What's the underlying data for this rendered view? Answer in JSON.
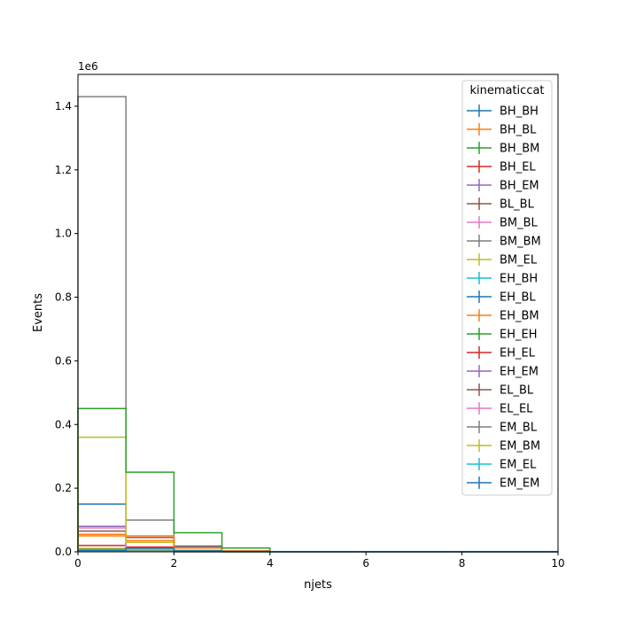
{
  "chart_data": {
    "type": "step-histogram",
    "title": "",
    "xlabel": "njets",
    "ylabel": "Events",
    "y_offset_label": "1e6",
    "x_bin_edges": [
      0,
      1,
      2,
      3,
      4,
      5,
      6,
      7,
      8,
      9,
      10
    ],
    "xlim": [
      0,
      10
    ],
    "ylim": [
      0,
      1500000
    ],
    "x_ticks": [
      0,
      2,
      4,
      6,
      8,
      10
    ],
    "x_tick_labels": [
      "0",
      "2",
      "4",
      "6",
      "8",
      "10"
    ],
    "y_ticks": [
      0,
      200000,
      400000,
      600000,
      800000,
      1000000,
      1200000,
      1400000
    ],
    "y_tick_labels": [
      "0.0",
      "0.2",
      "0.4",
      "0.6",
      "0.8",
      "1.0",
      "1.2",
      "1.4"
    ],
    "grid": false,
    "legend": {
      "title": "kinematiccat",
      "placement": "top-right"
    },
    "series": [
      {
        "name": "BH_BH",
        "color": "#1f77b4",
        "values": [
          150000,
          8000,
          1000,
          200,
          0,
          0,
          0,
          0,
          0,
          0
        ]
      },
      {
        "name": "BH_BL",
        "color": "#ff7f0e",
        "values": [
          55000,
          35000,
          12000,
          2000,
          0,
          0,
          0,
          0,
          0,
          0
        ]
      },
      {
        "name": "BH_BM",
        "color": "#2ca02c",
        "values": [
          10000,
          5000,
          1500,
          300,
          0,
          0,
          0,
          0,
          0,
          0
        ]
      },
      {
        "name": "BH_EL",
        "color": "#d62728",
        "values": [
          20000,
          15000,
          5000,
          1000,
          0,
          0,
          0,
          0,
          0,
          0
        ]
      },
      {
        "name": "BH_EM",
        "color": "#9467bd",
        "values": [
          80000,
          10000,
          2000,
          300,
          0,
          0,
          0,
          0,
          0,
          0
        ]
      },
      {
        "name": "BL_BL",
        "color": "#8c564b",
        "values": [
          65000,
          45000,
          18000,
          3000,
          0,
          0,
          0,
          0,
          0,
          0
        ]
      },
      {
        "name": "BM_BL",
        "color": "#e377c2",
        "values": [
          75000,
          12000,
          3000,
          500,
          0,
          0,
          0,
          0,
          0,
          0
        ]
      },
      {
        "name": "BM_BM",
        "color": "#7f7f7f",
        "values": [
          1430000,
          100000,
          15000,
          2000,
          0,
          0,
          0,
          0,
          0,
          0
        ]
      },
      {
        "name": "BM_EL",
        "color": "#bcbd22",
        "values": [
          360000,
          30000,
          5000,
          1000,
          0,
          0,
          0,
          0,
          0,
          0
        ]
      },
      {
        "name": "EH_BH",
        "color": "#17becf",
        "values": [
          5000,
          3000,
          800,
          100,
          0,
          0,
          0,
          0,
          0,
          0
        ]
      },
      {
        "name": "EH_BL",
        "color": "#1f77b4",
        "values": [
          7000,
          6000,
          2000,
          300,
          0,
          0,
          0,
          0,
          0,
          0
        ]
      },
      {
        "name": "EH_BM",
        "color": "#ff7f0e",
        "values": [
          50000,
          50000,
          12000,
          2000,
          0,
          0,
          0,
          0,
          0,
          0
        ]
      },
      {
        "name": "EH_EH",
        "color": "#2ca02c",
        "values": [
          450000,
          250000,
          60000,
          12000,
          0,
          0,
          0,
          0,
          0,
          0
        ]
      },
      {
        "name": "EH_EL",
        "color": "#d62728",
        "values": [
          3000,
          2000,
          500,
          100,
          0,
          0,
          0,
          0,
          0,
          0
        ]
      },
      {
        "name": "EH_EM",
        "color": "#9467bd",
        "values": [
          2000,
          1500,
          400,
          100,
          0,
          0,
          0,
          0,
          0,
          0
        ]
      },
      {
        "name": "EL_BL",
        "color": "#8c564b",
        "values": [
          4000,
          3000,
          800,
          100,
          0,
          0,
          0,
          0,
          0,
          0
        ]
      },
      {
        "name": "EL_EL",
        "color": "#e377c2",
        "values": [
          3000,
          2500,
          600,
          100,
          0,
          0,
          0,
          0,
          0,
          0
        ]
      },
      {
        "name": "EM_BL",
        "color": "#7f7f7f",
        "values": [
          6000,
          5000,
          1500,
          300,
          0,
          0,
          0,
          0,
          0,
          0
        ]
      },
      {
        "name": "EM_BM",
        "color": "#bcbd22",
        "values": [
          8000,
          7000,
          2000,
          300,
          0,
          0,
          0,
          0,
          0,
          0
        ]
      },
      {
        "name": "EM_EL",
        "color": "#17becf",
        "values": [
          2000,
          1500,
          400,
          100,
          0,
          0,
          0,
          0,
          0,
          0
        ]
      },
      {
        "name": "EM_EM",
        "color": "#1f77b4",
        "values": [
          5000,
          12000,
          3000,
          800,
          0,
          0,
          0,
          0,
          0,
          0
        ]
      }
    ]
  }
}
